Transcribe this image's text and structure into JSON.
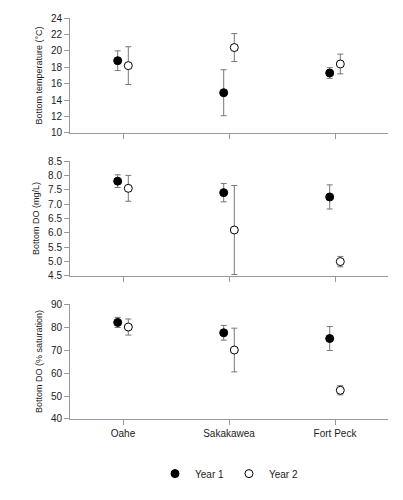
{
  "chart_data": [
    {
      "type": "scatter",
      "ylabel": "Bottom temperature (°C)",
      "categories": [
        "Oahe",
        "Sakakawea",
        "Fort Peck"
      ],
      "series": [
        {
          "name": "Year 1",
          "color": "black",
          "marker": "filled",
          "values": [
            18.8,
            14.9,
            17.3
          ],
          "errors": [
            1.2,
            2.8,
            0.65
          ]
        },
        {
          "name": "Year 2",
          "color": "black",
          "marker": "open",
          "values": [
            18.2,
            20.4,
            18.4
          ],
          "errors": [
            2.3,
            1.7,
            1.2
          ]
        }
      ],
      "ylim": [
        10,
        24
      ],
      "yticks": [
        10,
        12,
        14,
        16,
        18,
        20,
        22,
        24
      ],
      "grid": false,
      "tick_labels": "y"
    },
    {
      "type": "scatter",
      "ylabel": "Bottom DO (mg/L)",
      "categories": [
        "Oahe",
        "Sakakawea",
        "Fort Peck"
      ],
      "series": [
        {
          "name": "Year 1",
          "color": "black",
          "marker": "filled",
          "values": [
            7.8,
            7.4,
            7.25
          ],
          "errors": [
            0.22,
            0.32,
            0.42
          ]
        },
        {
          "name": "Year 2",
          "color": "black",
          "marker": "open",
          "values": [
            7.55,
            6.1,
            5.0
          ],
          "errors": [
            0.45,
            1.55,
            0.18
          ]
        }
      ],
      "ylim": [
        4.5,
        8.5
      ],
      "yticks": [
        4.5,
        {
          "value": 5,
          "label": "5.0"
        },
        5.5,
        {
          "value": 6,
          "label": "6.0"
        },
        6.5,
        {
          "value": 7,
          "label": "7.0"
        },
        7.5,
        {
          "value": 8,
          "label": "8.0"
        },
        8.5
      ],
      "grid": false,
      "tick_labels": "y"
    },
    {
      "type": "scatter",
      "ylabel": "Bottom DO (% saturation)",
      "categories": [
        "Oahe",
        "Sakakawea",
        "Fort Peck"
      ],
      "series": [
        {
          "name": "Year 1",
          "color": "black",
          "marker": "filled",
          "values": [
            82.0,
            77.5,
            75.0
          ],
          "errors": [
            2.2,
            3.2,
            5.2
          ]
        },
        {
          "name": "Year 2",
          "color": "black",
          "marker": "open",
          "values": [
            80.0,
            70.0,
            52.5
          ],
          "errors": [
            3.5,
            9.5,
            2.0
          ]
        }
      ],
      "ylim": [
        40,
        90
      ],
      "yticks": [
        40,
        50,
        60,
        70,
        80,
        90
      ],
      "grid": false,
      "legend": "bottom"
    }
  ]
}
